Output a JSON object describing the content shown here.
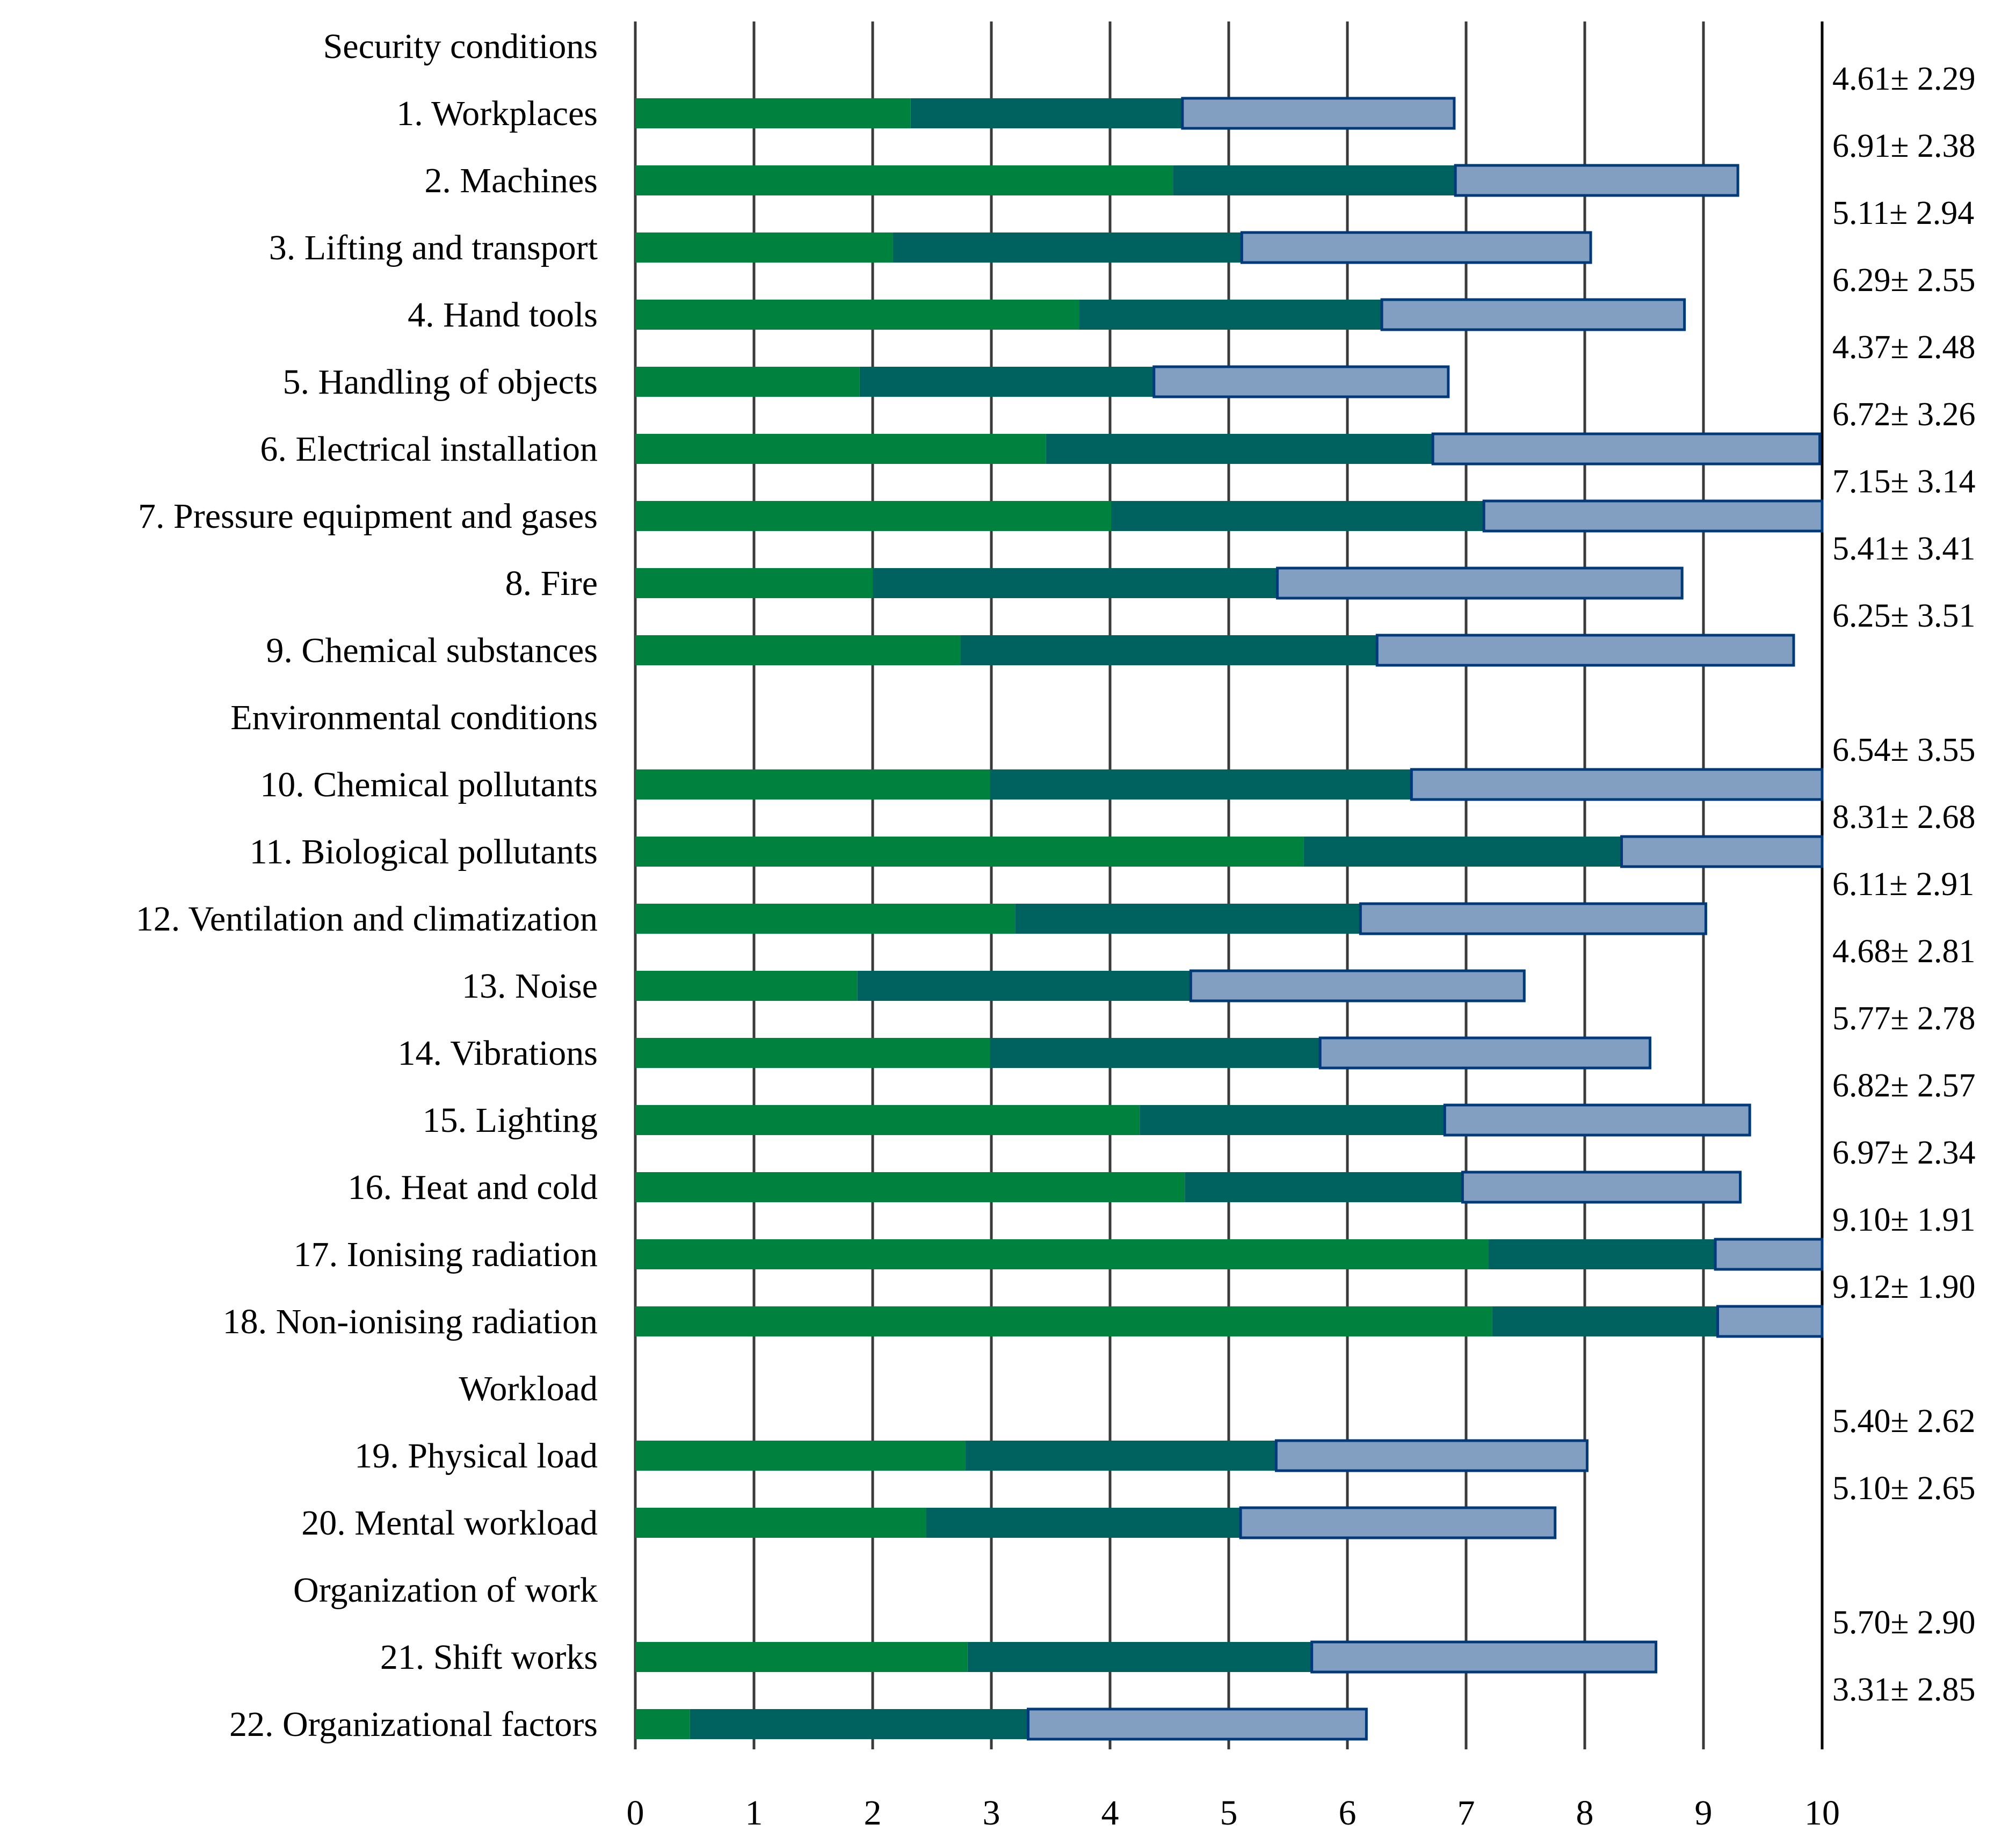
{
  "chart_data": {
    "type": "bar",
    "orientation": "horizontal",
    "stacked": true,
    "xlim": [
      0,
      10
    ],
    "x_ticks": [
      "0",
      "1",
      "2",
      "3",
      "4",
      "5",
      "6",
      "7",
      "8",
      "9",
      "10"
    ],
    "grid": true,
    "colors": {
      "lower_segment": "#00823f",
      "middle_segment": "#00625e",
      "upper_segment_fill": "#829fc1",
      "upper_segment_border": "#003a7a"
    },
    "rows": [
      {
        "label": "Security conditions",
        "header": true
      },
      {
        "label": "1. Workplaces",
        "mean": 4.61,
        "sd": 2.29,
        "stat": "4.61± 2.29"
      },
      {
        "label": "2. Machines",
        "mean": 6.91,
        "sd": 2.38,
        "stat": "6.91± 2.38"
      },
      {
        "label": "3. Lifting and transport",
        "mean": 5.11,
        "sd": 2.94,
        "stat": "5.11± 2.94"
      },
      {
        "label": "4. Hand tools",
        "mean": 6.29,
        "sd": 2.55,
        "stat": "6.29± 2.55"
      },
      {
        "label": "5. Handling of objects",
        "mean": 4.37,
        "sd": 2.48,
        "stat": "4.37± 2.48"
      },
      {
        "label": "6. Electrical installation",
        "mean": 6.72,
        "sd": 3.26,
        "stat": "6.72± 3.26"
      },
      {
        "label": "7. Pressure equipment and gases",
        "mean": 7.15,
        "sd": 3.14,
        "stat": "7.15± 3.14"
      },
      {
        "label": "8. Fire",
        "mean": 5.41,
        "sd": 3.41,
        "stat": "5.41± 3.41"
      },
      {
        "label": "9. Chemical substances",
        "mean": 6.25,
        "sd": 3.51,
        "stat": "6.25± 3.51"
      },
      {
        "label": "Environmental conditions",
        "header": true
      },
      {
        "label": "10. Chemical pollutants",
        "mean": 6.54,
        "sd": 3.55,
        "stat": "6.54± 3.55"
      },
      {
        "label": "11. Biological pollutants",
        "mean": 8.31,
        "sd": 2.68,
        "stat": "8.31± 2.68"
      },
      {
        "label": "12. Ventilation and climatization",
        "mean": 6.11,
        "sd": 2.91,
        "stat": "6.11± 2.91"
      },
      {
        "label": "13. Noise",
        "mean": 4.68,
        "sd": 2.81,
        "stat": "4.68± 2.81"
      },
      {
        "label": "14. Vibrations",
        "mean": 5.77,
        "sd": 2.78,
        "stat": "5.77± 2.78"
      },
      {
        "label": "15. Lighting",
        "mean": 6.82,
        "sd": 2.57,
        "stat": "6.82± 2.57"
      },
      {
        "label": "16. Heat and cold",
        "mean": 6.97,
        "sd": 2.34,
        "stat": "6.97± 2.34"
      },
      {
        "label": "17. Ionising radiation",
        "mean": 9.1,
        "sd": 1.91,
        "stat": "9.10± 1.91"
      },
      {
        "label": "18. Non-ionising radiation",
        "mean": 9.12,
        "sd": 1.9,
        "stat": "9.12± 1.90"
      },
      {
        "label": "Workload",
        "header": true
      },
      {
        "label": "19. Physical load",
        "mean": 5.4,
        "sd": 2.62,
        "stat": "5.40± 2.62"
      },
      {
        "label": "20. Mental workload",
        "mean": 5.1,
        "sd": 2.65,
        "stat": "5.10± 2.65"
      },
      {
        "label": "Organization of work",
        "header": true
      },
      {
        "label": "21. Shift works",
        "mean": 5.7,
        "sd": 2.9,
        "stat": "5.70± 2.90"
      },
      {
        "label": "22. Organizational factors",
        "mean": 3.31,
        "sd": 2.85,
        "stat": "3.31± 2.85"
      }
    ]
  }
}
